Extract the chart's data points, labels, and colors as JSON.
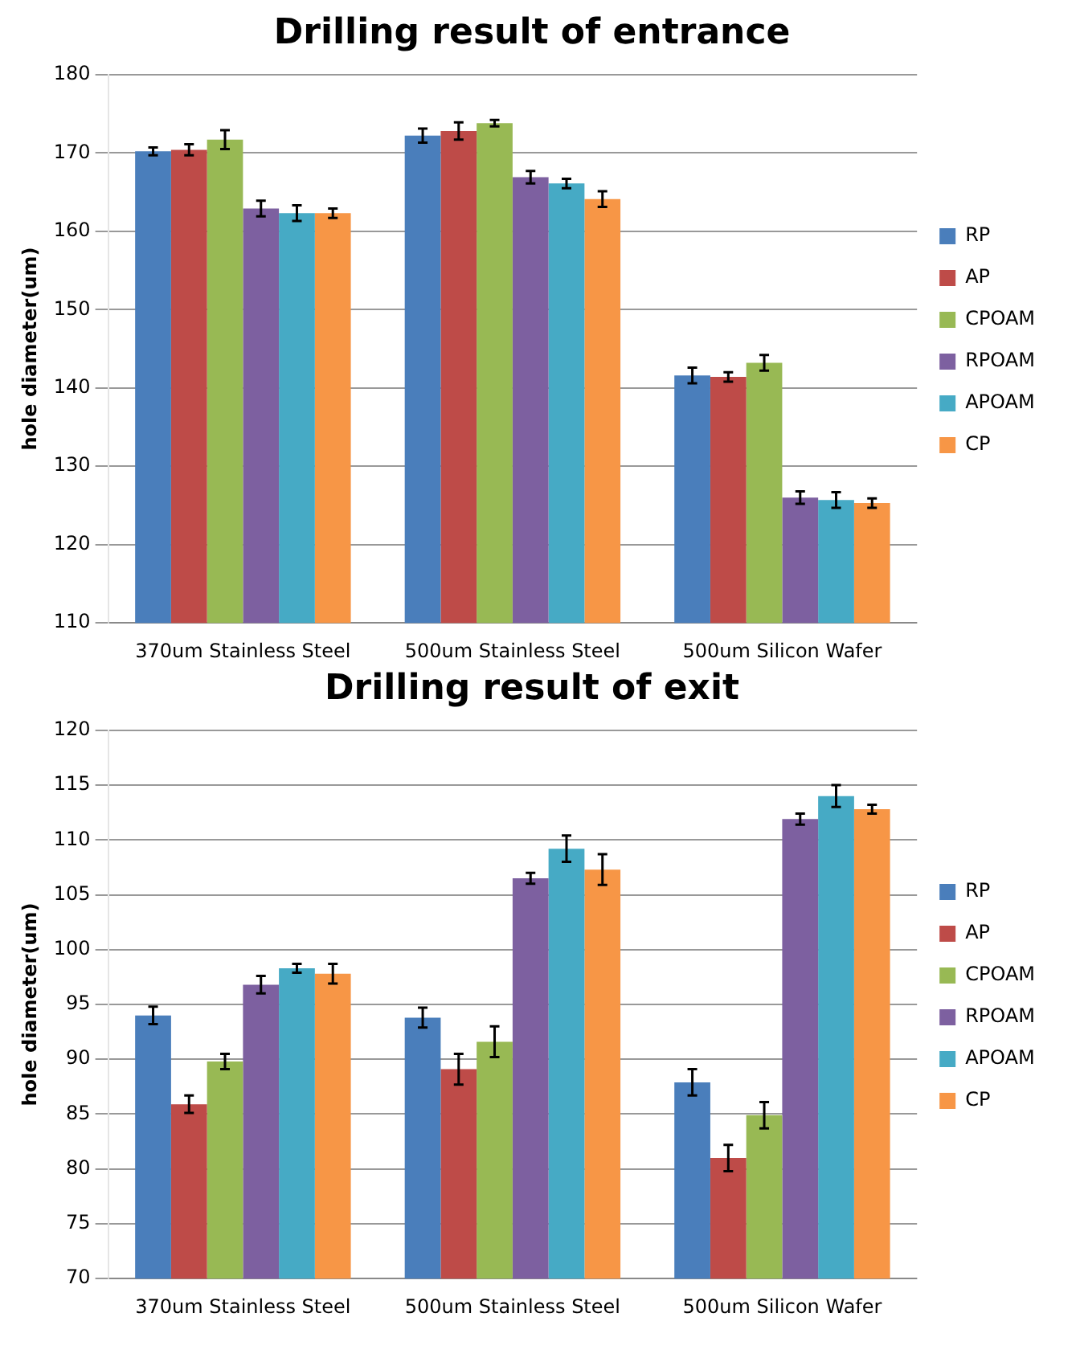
{
  "chart_data": [
    {
      "type": "bar",
      "title": "Drilling result of entrance",
      "ylabel": "hole diameter(um)",
      "categories": [
        "370um Stainless Steel",
        "500um Stainless Steel",
        "500um Silicon Wafer"
      ],
      "ylim": [
        110,
        180
      ],
      "yticks": [
        110,
        120,
        130,
        140,
        150,
        160,
        170,
        180
      ],
      "grid": "y",
      "legend": "right",
      "series": [
        {
          "name": "RP",
          "color": "#4a7ebb",
          "values": [
            170.2,
            172.2,
            141.6
          ],
          "errors": [
            0.5,
            0.9,
            1.0
          ]
        },
        {
          "name": "AP",
          "color": "#be4b48",
          "values": [
            170.4,
            172.8,
            141.4
          ],
          "errors": [
            0.7,
            1.1,
            0.6
          ]
        },
        {
          "name": "CPOAM",
          "color": "#98b954",
          "values": [
            171.7,
            173.8,
            143.2
          ],
          "errors": [
            1.2,
            0.4,
            1.0
          ]
        },
        {
          "name": "RPOAM",
          "color": "#7d60a0",
          "values": [
            162.9,
            166.9,
            126.0
          ],
          "errors": [
            1.0,
            0.8,
            0.8
          ]
        },
        {
          "name": "APOAM",
          "color": "#46aac5",
          "values": [
            162.3,
            166.1,
            125.7
          ],
          "errors": [
            1.0,
            0.6,
            1.0
          ]
        },
        {
          "name": "CP",
          "color": "#f79646",
          "values": [
            162.3,
            164.1,
            125.3
          ],
          "errors": [
            0.6,
            1.0,
            0.6
          ]
        }
      ]
    },
    {
      "type": "bar",
      "title": "Drilling result of exit",
      "ylabel": "hole diameter(um)",
      "categories": [
        "370um Stainless Steel",
        "500um Stainless Steel",
        "500um Silicon Wafer"
      ],
      "ylim": [
        70,
        120
      ],
      "yticks": [
        70,
        75,
        80,
        85,
        90,
        95,
        100,
        105,
        110,
        115,
        120
      ],
      "grid": "y",
      "legend": "right",
      "series": [
        {
          "name": "RP",
          "color": "#4a7ebb",
          "values": [
            94.0,
            93.8,
            87.9
          ],
          "errors": [
            0.8,
            0.9,
            1.2
          ]
        },
        {
          "name": "AP",
          "color": "#be4b48",
          "values": [
            85.9,
            89.1,
            81.0
          ],
          "errors": [
            0.8,
            1.4,
            1.2
          ]
        },
        {
          "name": "CPOAM",
          "color": "#98b954",
          "values": [
            89.8,
            91.6,
            84.9
          ],
          "errors": [
            0.7,
            1.4,
            1.2
          ]
        },
        {
          "name": "RPOAM",
          "color": "#7d60a0",
          "values": [
            96.8,
            106.5,
            111.9
          ],
          "errors": [
            0.8,
            0.5,
            0.5
          ]
        },
        {
          "name": "APOAM",
          "color": "#46aac5",
          "values": [
            98.3,
            109.2,
            114.0
          ],
          "errors": [
            0.4,
            1.2,
            1.0
          ]
        },
        {
          "name": "CP",
          "color": "#f79646",
          "values": [
            97.8,
            107.3,
            112.8
          ],
          "errors": [
            0.9,
            1.4,
            0.4
          ]
        }
      ]
    }
  ]
}
